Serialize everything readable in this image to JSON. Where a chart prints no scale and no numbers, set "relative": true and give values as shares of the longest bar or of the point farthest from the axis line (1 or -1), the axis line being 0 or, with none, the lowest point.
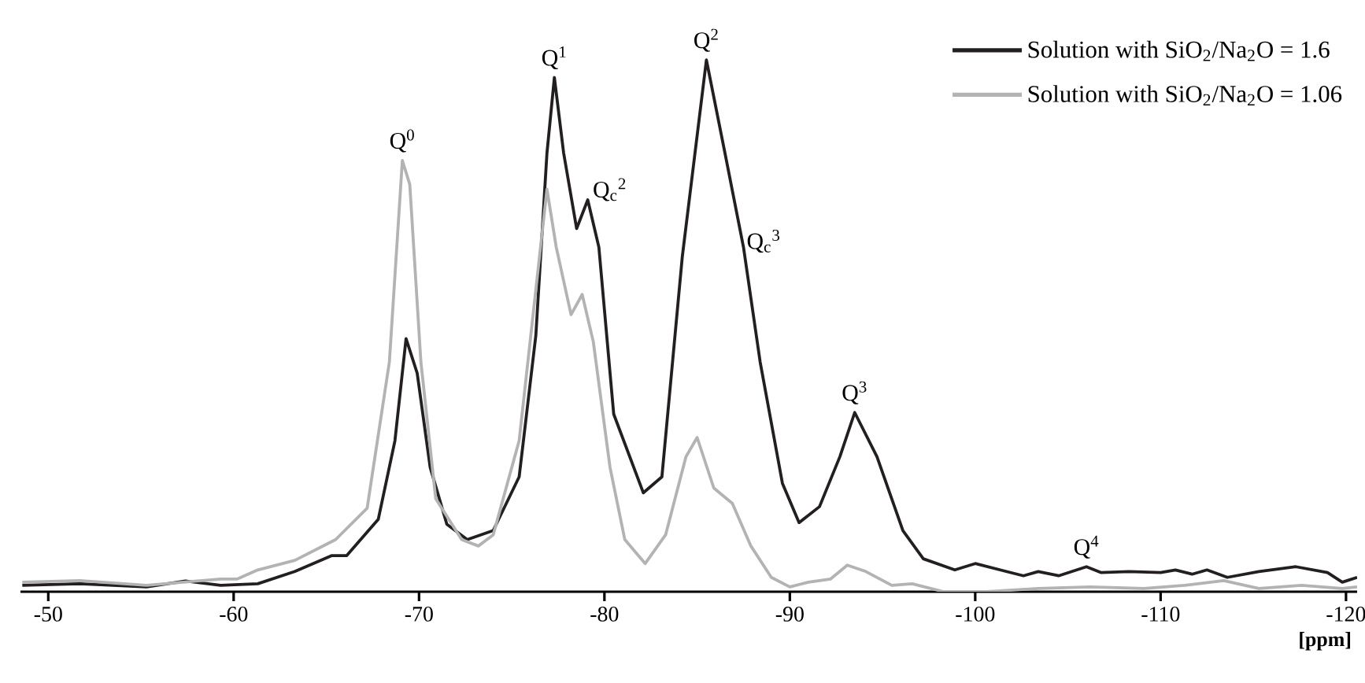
{
  "chart_data": {
    "type": "line",
    "relative": true,
    "xlabel": "[ppm]",
    "xlim": [
      -48.5,
      -120.6
    ],
    "xticks": [
      -50,
      -60,
      -70,
      -80,
      -90,
      -100,
      -110,
      -120
    ],
    "legend": "top right",
    "series": [
      {
        "name": "Solution with SiO$_{2}$/Na$_{2}$O = 1.6",
        "color": "#231f20",
        "x": [
          -48.6,
          -51.7,
          -55.3,
          -57.4,
          -59.3,
          -61.3,
          -63.3,
          -65.3,
          -66.1,
          -67.8,
          -68.7,
          -69.3,
          -69.9,
          -70.6,
          -71.5,
          -72.6,
          -74.0,
          -75.4,
          -76.3,
          -76.9,
          -77.3,
          -77.8,
          -78.5,
          -79.1,
          -79.7,
          -80.5,
          -82.1,
          -83.1,
          -84.2,
          -85.5,
          -86.5,
          -87.5,
          -88.4,
          -89.6,
          -90.5,
          -91.6,
          -92.7,
          -93.5,
          -94.7,
          -96.1,
          -97.2,
          -98.9,
          -100.0,
          -102.6,
          -103.4,
          -104.5,
          -106.0,
          -106.8,
          -108.3,
          -110.0,
          -110.8,
          -111.7,
          -112.5,
          -113.6,
          -115.3,
          -117.3,
          -119.0,
          -119.8,
          -120.6
        ],
        "values": [
          0.012,
          0.015,
          0.009,
          0.02,
          0.012,
          0.015,
          0.038,
          0.068,
          0.068,
          0.136,
          0.284,
          0.476,
          0.411,
          0.234,
          0.127,
          0.098,
          0.115,
          0.216,
          0.482,
          0.825,
          0.967,
          0.825,
          0.683,
          0.737,
          0.648,
          0.334,
          0.186,
          0.216,
          0.63,
          1.0,
          0.825,
          0.648,
          0.432,
          0.204,
          0.13,
          0.16,
          0.254,
          0.337,
          0.254,
          0.115,
          0.062,
          0.041,
          0.053,
          0.03,
          0.038,
          0.03,
          0.047,
          0.036,
          0.038,
          0.036,
          0.041,
          0.033,
          0.041,
          0.027,
          0.038,
          0.047,
          0.036,
          0.018,
          0.027
        ]
      },
      {
        "name": "Solution with SiO$_{2}$/Na$_{2}$O = 1.06",
        "color": "#b3b3b3",
        "x": [
          -48.6,
          -51.7,
          -55.3,
          -59.3,
          -60.2,
          -61.3,
          -63.3,
          -65.5,
          -67.2,
          -68.4,
          -69.1,
          -69.5,
          -70.1,
          -70.9,
          -72.3,
          -73.2,
          -74.0,
          -75.4,
          -76.9,
          -77.4,
          -78.2,
          -78.8,
          -79.4,
          -80.3,
          -81.1,
          -82.2,
          -83.3,
          -84.4,
          -85.0,
          -85.9,
          -86.9,
          -87.9,
          -89.0,
          -90.0,
          -91.0,
          -92.2,
          -93.1,
          -94.1,
          -95.5,
          -96.6,
          -98.3,
          -100.6,
          -103.4,
          -106.2,
          -109.1,
          -111.3,
          -113.4,
          -115.3,
          -117.6,
          -119.8,
          -120.6
        ],
        "values": [
          0.018,
          0.021,
          0.012,
          0.024,
          0.024,
          0.041,
          0.059,
          0.098,
          0.157,
          0.432,
          0.811,
          0.766,
          0.432,
          0.175,
          0.098,
          0.086,
          0.107,
          0.284,
          0.757,
          0.648,
          0.521,
          0.559,
          0.47,
          0.234,
          0.098,
          0.053,
          0.107,
          0.254,
          0.29,
          0.195,
          0.166,
          0.086,
          0.027,
          0.009,
          0.018,
          0.024,
          0.05,
          0.038,
          0.012,
          0.015,
          0.0,
          0.0,
          0.006,
          0.009,
          0.006,
          0.012,
          0.021,
          0.006,
          0.012,
          0.006,
          0.009
        ]
      }
    ],
    "annotations": [
      {
        "text": "Q$^{0}$",
        "x": -69.1,
        "y": 0.811
      },
      {
        "text": "Q$^{1}$",
        "x": -77.3,
        "y": 0.967
      },
      {
        "text": "Q$_{c}$$^{2}$",
        "x": -79.1,
        "y": 0.737
      },
      {
        "text": "Q$^{2}$",
        "x": -85.5,
        "y": 1.0
      },
      {
        "text": "Q$_{c}$$^{3}$",
        "x": -87.4,
        "y": 0.64
      },
      {
        "text": "Q$^{3}$",
        "x": -93.5,
        "y": 0.337
      },
      {
        "text": "Q$^{4}$",
        "x": -106.0,
        "y": 0.047
      }
    ]
  }
}
